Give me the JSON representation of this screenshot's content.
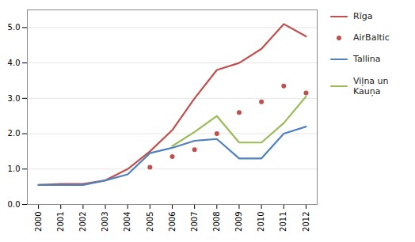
{
  "chart_data": {
    "type": "line",
    "x": [
      2000,
      2001,
      2002,
      2003,
      2004,
      2005,
      2006,
      2007,
      2008,
      2009,
      2010,
      2011,
      2012
    ],
    "xlim": [
      1999.5,
      2012.5
    ],
    "xticks": [
      2000,
      2001,
      2002,
      2003,
      2004,
      2005,
      2006,
      2007,
      2008,
      2009,
      2010,
      2011,
      2012
    ],
    "ylim": [
      0,
      5.5
    ],
    "yticks": [
      0,
      1,
      2,
      3,
      4,
      5
    ],
    "grid": true,
    "legend": "right",
    "series": [
      {
        "name": "Rīga",
        "color": "#c0504d",
        "line_style": "solid",
        "values": [
          0.55,
          0.58,
          0.58,
          0.68,
          1.0,
          1.5,
          2.1,
          3.0,
          3.8,
          4.0,
          4.4,
          5.1,
          4.75
        ]
      },
      {
        "name": "AirBaltic",
        "color": "#c0504d",
        "line_style": "none",
        "marker": "circle",
        "values": [
          null,
          null,
          null,
          null,
          null,
          1.05,
          1.35,
          1.55,
          2.0,
          2.6,
          2.9,
          3.35,
          3.15
        ]
      },
      {
        "name": "Tallina",
        "color": "#4f81bd",
        "line_style": "solid",
        "values": [
          0.55,
          0.55,
          0.55,
          0.68,
          0.85,
          1.45,
          1.6,
          1.8,
          1.85,
          1.3,
          1.3,
          2.0,
          2.2
        ]
      },
      {
        "name": "Viļna un\nKauņa",
        "color": "#9bbb59",
        "line_style": "solid",
        "values": [
          null,
          null,
          null,
          null,
          null,
          null,
          1.65,
          2.05,
          2.5,
          1.75,
          1.75,
          2.3,
          3.05
        ]
      }
    ]
  }
}
